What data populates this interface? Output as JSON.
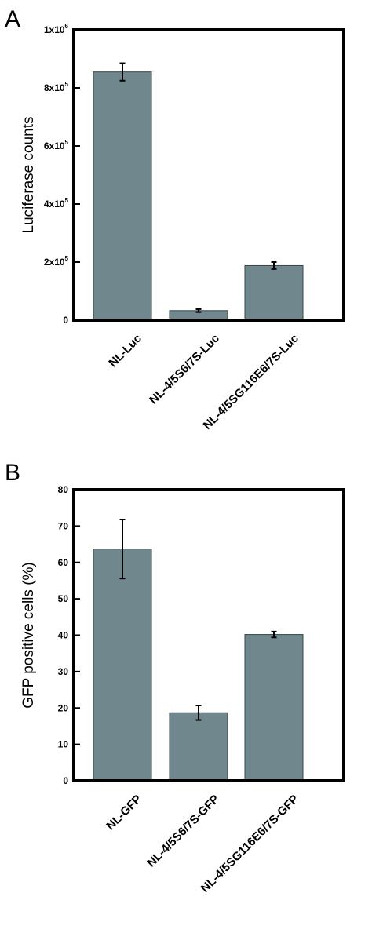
{
  "chart_data": [
    {
      "type": "bar",
      "panel": "A",
      "ylabel": "Luciferase counts",
      "ylim": [
        0,
        1000000
      ],
      "y_tick_values": [
        0,
        200000,
        400000,
        600000,
        800000,
        1000000
      ],
      "y_tick_labels": [
        {
          "base": "0",
          "exp": ""
        },
        {
          "base": "2x10",
          "exp": "5"
        },
        {
          "base": "4x10",
          "exp": "5"
        },
        {
          "base": "6x10",
          "exp": "5"
        },
        {
          "base": "8x10",
          "exp": "5"
        },
        {
          "base": "1x10",
          "exp": "6"
        }
      ],
      "categories": [
        "NL-Luc",
        "NL-4/5S6/7S-Luc",
        "NL-4/5SG116E6/7S-Luc"
      ],
      "values": [
        855000,
        33000,
        188000
      ],
      "errors": [
        30000,
        5000,
        12000
      ],
      "grid": false,
      "bar_color": "#6f878d"
    },
    {
      "type": "bar",
      "panel": "B",
      "ylabel": "GFP positive cells (%)",
      "ylim": [
        0,
        80
      ],
      "y_tick_values": [
        0,
        10,
        20,
        30,
        40,
        50,
        60,
        70,
        80
      ],
      "y_tick_labels": [
        {
          "base": "0",
          "exp": ""
        },
        {
          "base": "10",
          "exp": ""
        },
        {
          "base": "20",
          "exp": ""
        },
        {
          "base": "30",
          "exp": ""
        },
        {
          "base": "40",
          "exp": ""
        },
        {
          "base": "50",
          "exp": ""
        },
        {
          "base": "60",
          "exp": ""
        },
        {
          "base": "70",
          "exp": ""
        },
        {
          "base": "80",
          "exp": ""
        }
      ],
      "categories": [
        "NL-GFP",
        "NL-4/5S6/7S-GFP",
        "NL-4/5SG116E6/7S-GFP"
      ],
      "values": [
        63.7,
        18.7,
        40.2
      ],
      "errors": [
        8.1,
        2.0,
        0.8
      ],
      "grid": false,
      "bar_color": "#6f878d"
    }
  ]
}
